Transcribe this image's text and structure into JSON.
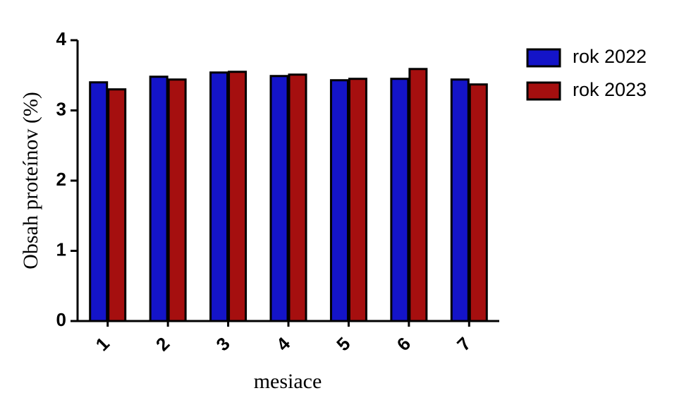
{
  "chart_data": {
    "type": "bar",
    "xlabel": "mesiace",
    "ylabel": "Obsah proteínov (%)",
    "categories": [
      "1",
      "2",
      "3",
      "4",
      "5",
      "6",
      "7"
    ],
    "series": [
      {
        "name": "rok 2022",
        "color": "#1414c8",
        "values": [
          3.4,
          3.48,
          3.54,
          3.49,
          3.43,
          3.45,
          3.44
        ]
      },
      {
        "name": "rok 2023",
        "color": "#a50f0f",
        "values": [
          3.3,
          3.44,
          3.55,
          3.51,
          3.45,
          3.59,
          3.37
        ]
      }
    ],
    "ylim": [
      0,
      4
    ],
    "yticks": [
      0,
      1,
      2,
      3,
      4
    ],
    "legend": "top-right"
  }
}
